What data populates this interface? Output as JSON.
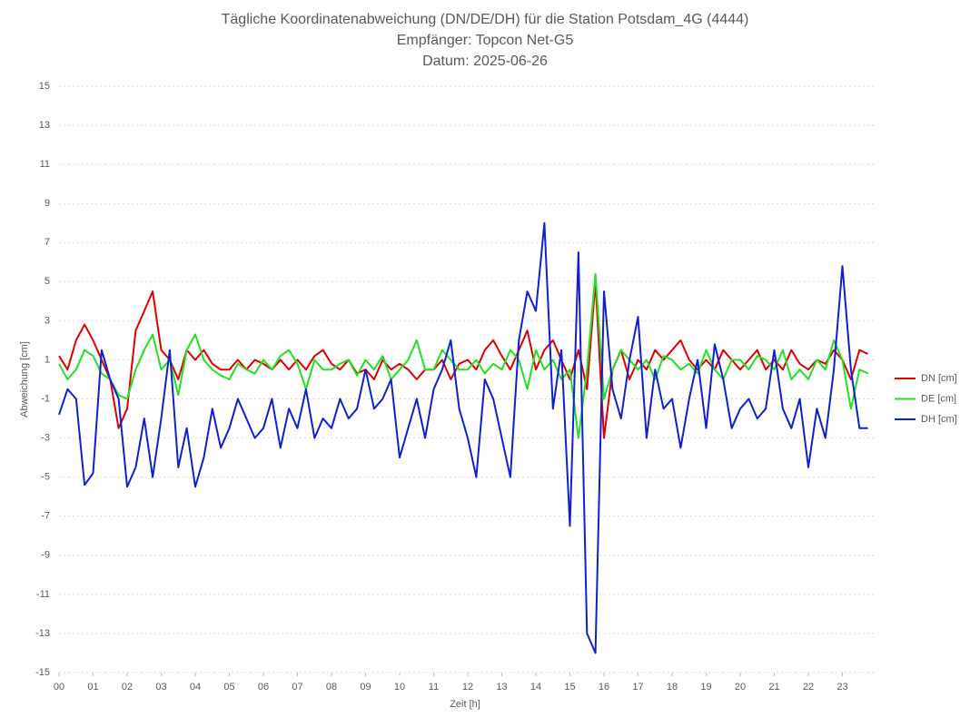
{
  "chart_data": {
    "type": "line",
    "title": "Tägliche Koordinatenabweichung (DN/DE/DH) für die Station Potsdam_4G (4444)",
    "subtitle": "Empfänger: Topcon Net-G5",
    "date_line": "Datum: 2025-06-26",
    "x_label": "Zeit [h]",
    "y_label": "Abweichung [cm]",
    "x": [
      0,
      0.25,
      0.5,
      0.75,
      1,
      1.25,
      1.5,
      1.75,
      2,
      2.25,
      2.5,
      2.75,
      3,
      3.25,
      3.5,
      3.75,
      4,
      4.25,
      4.5,
      4.75,
      5,
      5.25,
      5.5,
      5.75,
      6,
      6.25,
      6.5,
      6.75,
      7,
      7.25,
      7.5,
      7.75,
      8,
      8.25,
      8.5,
      8.75,
      9,
      9.25,
      9.5,
      9.75,
      10,
      10.25,
      10.5,
      10.75,
      11,
      11.25,
      11.5,
      11.75,
      12,
      12.25,
      12.5,
      12.75,
      13,
      13.25,
      13.5,
      13.75,
      14,
      14.25,
      14.5,
      14.75,
      15,
      15.25,
      15.5,
      15.75,
      16,
      16.25,
      16.5,
      16.75,
      17,
      17.25,
      17.5,
      17.75,
      18,
      18.25,
      18.5,
      18.75,
      19,
      19.25,
      19.5,
      19.75,
      20,
      20.25,
      20.5,
      20.75,
      21,
      21.25,
      21.5,
      21.75,
      22,
      22.25,
      22.5,
      22.75,
      23,
      23.25,
      23.5,
      23.75
    ],
    "series": [
      {
        "name": "DN [cm]",
        "color": "#e00000",
        "values": [
          1.2,
          0.5,
          2.0,
          2.8,
          2.0,
          1.0,
          0.0,
          -2.5,
          -1.5,
          2.5,
          3.5,
          4.5,
          1.5,
          1.0,
          0.0,
          1.5,
          1.0,
          1.5,
          0.8,
          0.5,
          0.5,
          1.0,
          0.5,
          1.0,
          0.8,
          0.5,
          1.0,
          0.5,
          1.0,
          0.5,
          1.2,
          1.5,
          0.8,
          0.5,
          1.0,
          0.3,
          0.5,
          0.0,
          1.0,
          0.5,
          0.8,
          0.5,
          0.0,
          0.5,
          0.5,
          1.0,
          0.0,
          0.8,
          1.0,
          0.5,
          1.5,
          2.0,
          1.2,
          0.5,
          1.5,
          2.5,
          0.5,
          1.5,
          2.0,
          1.0,
          0.0,
          1.5,
          -0.5,
          5.0,
          -3.0,
          0.5,
          1.5,
          0.0,
          1.0,
          0.5,
          1.5,
          1.0,
          1.5,
          2.0,
          1.0,
          0.5,
          1.0,
          0.5,
          1.5,
          1.0,
          0.5,
          1.0,
          1.5,
          0.5,
          1.0,
          0.5,
          1.5,
          0.8,
          0.5,
          1.0,
          0.8,
          1.5,
          1.0,
          0.0,
          1.5,
          1.3
        ]
      },
      {
        "name": "DE [cm]",
        "color": "#22e022",
        "values": [
          0.8,
          0.0,
          0.5,
          1.5,
          1.2,
          0.3,
          0.0,
          -0.8,
          -1.0,
          0.5,
          1.5,
          2.3,
          0.5,
          1.0,
          -0.8,
          1.5,
          2.3,
          1.0,
          0.5,
          0.2,
          0.0,
          0.8,
          0.5,
          0.3,
          1.0,
          0.5,
          1.2,
          1.5,
          0.8,
          -0.5,
          1.0,
          0.5,
          0.5,
          0.8,
          1.0,
          0.2,
          1.0,
          0.5,
          1.2,
          0.0,
          0.5,
          1.0,
          2.0,
          0.5,
          0.5,
          1.5,
          1.0,
          0.5,
          0.5,
          1.0,
          0.3,
          0.8,
          0.5,
          1.5,
          1.0,
          -0.5,
          1.5,
          0.5,
          1.0,
          0.0,
          0.5,
          -3.0,
          0.5,
          5.4,
          -1.0,
          0.5,
          1.5,
          1.0,
          0.5,
          1.0,
          0.0,
          1.2,
          1.0,
          0.5,
          0.8,
          0.3,
          1.5,
          0.5,
          0.0,
          1.0,
          1.0,
          0.5,
          1.2,
          1.0,
          0.5,
          1.5,
          0.0,
          0.5,
          0.0,
          1.0,
          0.5,
          2.0,
          1.0,
          -1.5,
          0.5,
          0.3
        ]
      },
      {
        "name": "DH [cm]",
        "color": "#1020d0",
        "values": [
          -1.8,
          -0.5,
          -1.0,
          -5.4,
          -4.8,
          1.5,
          0.0,
          -1.0,
          -5.5,
          -4.5,
          -2.0,
          -5.0,
          -2.0,
          1.5,
          -4.5,
          -2.5,
          -5.5,
          -4.0,
          -1.5,
          -3.5,
          -2.5,
          -1.0,
          -2.0,
          -3.0,
          -2.5,
          -1.0,
          -3.5,
          -1.5,
          -2.5,
          -0.5,
          -3.0,
          -2.0,
          -2.5,
          -1.0,
          -2.0,
          -1.5,
          0.5,
          -1.5,
          -1.0,
          0.0,
          -4.0,
          -2.5,
          -1.0,
          -3.0,
          -0.5,
          0.5,
          2.0,
          -1.5,
          -3.0,
          -5.0,
          0.0,
          -1.0,
          -3.0,
          -5.0,
          2.0,
          4.5,
          3.5,
          8.0,
          -1.5,
          1.5,
          -7.5,
          6.5,
          -13,
          -14,
          4.5,
          -0.5,
          -2.0,
          1.0,
          3.2,
          -3.0,
          0.5,
          -1.5,
          -1.0,
          -3.5,
          -1.0,
          1.0,
          -2.5,
          1.8,
          0.0,
          -2.5,
          -1.5,
          -1.0,
          -2.0,
          -1.5,
          1.5,
          -1.5,
          -2.5,
          -1.0,
          -4.5,
          -1.5,
          -3.0,
          0.5,
          5.8,
          0.5,
          -2.5,
          -2.5
        ]
      }
    ],
    "xlim": [
      0,
      24
    ],
    "xticks": [
      {
        "value": 0,
        "label": "00"
      },
      {
        "value": 1,
        "label": "01"
      },
      {
        "value": 2,
        "label": "02"
      },
      {
        "value": 3,
        "label": "03"
      },
      {
        "value": 4,
        "label": "04"
      },
      {
        "value": 5,
        "label": "05"
      },
      {
        "value": 6,
        "label": "06"
      },
      {
        "value": 7,
        "label": "07"
      },
      {
        "value": 8,
        "label": "08"
      },
      {
        "value": 9,
        "label": "09"
      },
      10,
      11,
      12,
      13,
      14,
      15,
      16,
      17,
      18,
      19,
      20,
      21,
      22,
      23
    ],
    "ylim": [
      -15,
      15
    ],
    "yticks": [
      15,
      13,
      11,
      9,
      7,
      5,
      3,
      1,
      -1,
      -3,
      -5,
      -7,
      -9,
      -11,
      -13,
      -15
    ],
    "grid": true,
    "legend": "right"
  }
}
